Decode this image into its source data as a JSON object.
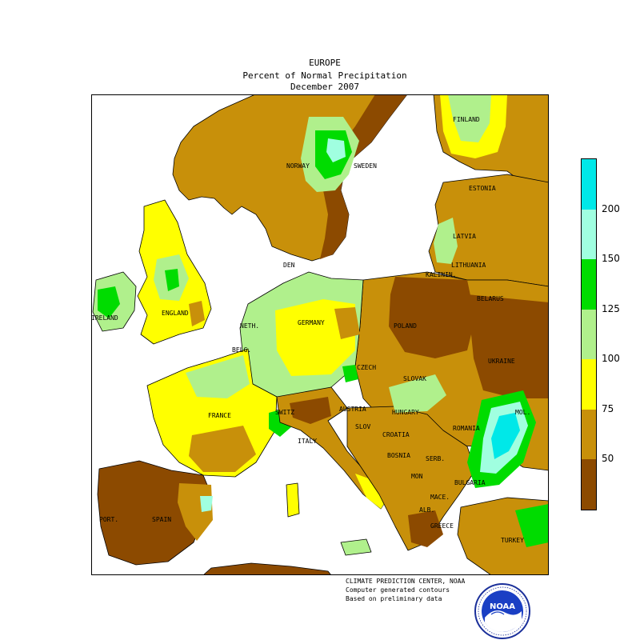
{
  "header": {
    "region": "EUROPE",
    "subtitle": "Percent of Normal Precipitation",
    "period": "December 2007"
  },
  "map_labels": {
    "finland": "FINLAND",
    "norway": "NORWAY",
    "sweden": "SWEDEN",
    "estonia": "ESTONIA",
    "latvia": "LATVIA",
    "lithuania": "LITHUANIA",
    "kalinin": "KALININ.",
    "belarus": "BELARUS",
    "ireland": "IRELAND",
    "england": "ENGLAND",
    "denmark": "DEN",
    "netherlands": "NETH.",
    "germany": "GERMANY",
    "poland": "POLAND",
    "belgium": "BELG.",
    "czech": "CZECH",
    "ukraine": "UKRAINE",
    "slovakia": "SLOVAK",
    "moldova": "MOL.",
    "france": "FRANCE",
    "switzerland": "SWITZ",
    "austria": "AUSTRIA",
    "hungary": "HUNGARY",
    "slovenia": "SLOV",
    "romania": "ROMANIA",
    "italy": "ITALY",
    "croatia": "CROATIA",
    "bosnia": "BOSNIA",
    "serbia": "SERB.",
    "bulgaria": "BULGARIA",
    "montenegro": "MON",
    "macedonia": "MACE.",
    "albania": "ALB.",
    "portugal": "PORT.",
    "spain": "SPAIN",
    "greece": "GREECE",
    "turkey": "TURKEY"
  },
  "legend": {
    "bins": [
      {
        "color": "#00e8e8",
        "range": "200+"
      },
      {
        "color": "#a0ffe0",
        "range": "150-200"
      },
      {
        "color": "#00dc00",
        "range": "125-150"
      },
      {
        "color": "#b0f08c",
        "range": "100-125"
      },
      {
        "color": "#ffff00",
        "range": "75-100"
      },
      {
        "color": "#c8900a",
        "range": "50-75"
      },
      {
        "color": "#8c4a00",
        "range": "<50"
      }
    ],
    "ticks": [
      "200",
      "150",
      "125",
      "100",
      "75",
      "50"
    ]
  },
  "credits": {
    "line1": "CLIMATE PREDICTION CENTER, NOAA",
    "line2": "Computer generated contours",
    "line3": "Based on preliminary data"
  },
  "logo": {
    "text": "NOAA",
    "icon": "noaa-logo-icon"
  },
  "colors": {
    "water": "#ffffff",
    "outline": "#000000"
  }
}
